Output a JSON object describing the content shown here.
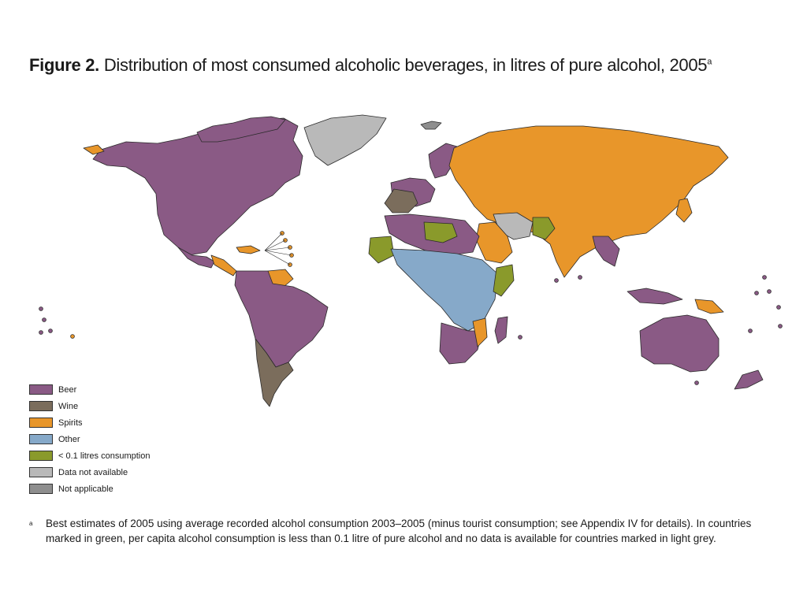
{
  "title": {
    "figure_label": "Figure 2.",
    "text": "Distribution of most consumed alcoholic beverages, in litres of pure alcohol, 2005",
    "superscript": "a"
  },
  "colors": {
    "beer": "#8a5a85",
    "wine": "#7b6d5c",
    "spirits": "#e8962a",
    "other": "#86a9c9",
    "low": "#8a9a2b",
    "na": "#b9b9b9",
    "not_applicable": "#8e8e8e"
  },
  "legend": [
    {
      "key": "beer",
      "label": "Beer"
    },
    {
      "key": "wine",
      "label": "Wine"
    },
    {
      "key": "spirits",
      "label": "Spirits"
    },
    {
      "key": "other",
      "label": "Other"
    },
    {
      "key": "low",
      "label": "< 0.1 litres consumption"
    },
    {
      "key": "na",
      "label": "Data not available"
    },
    {
      "key": "not_applicable",
      "label": "Not applicable"
    }
  ],
  "footnote": {
    "marker": "a",
    "text": "Best estimates of 2005 using average recorded alcohol consumption 2003–2005 (minus tourist consumption; see Appendix IV for details). In countries marked in green, per capita alcohol consumption is less than 0.1 litre of pure alcohol and no data is available for countries marked in light grey."
  }
}
